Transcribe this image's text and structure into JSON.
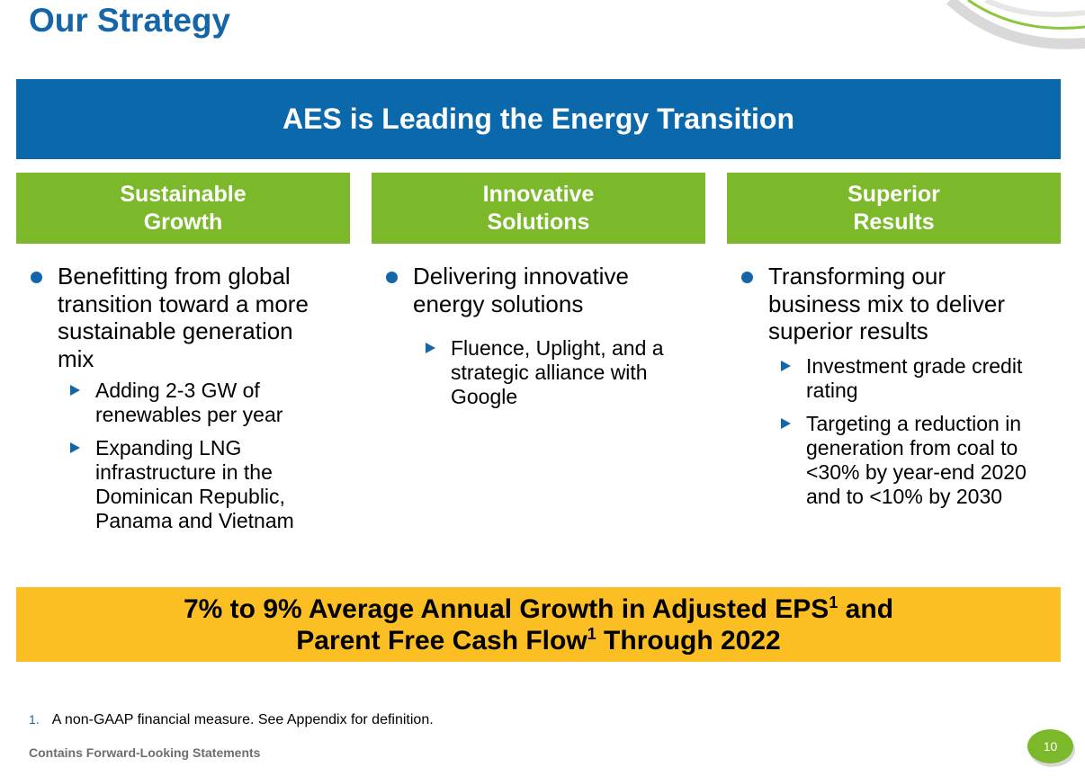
{
  "slide": {
    "title": "Our Strategy",
    "banner": "AES is Leading the Energy Transition",
    "columns": [
      {
        "header_line1": "Sustainable",
        "header_line2": "Growth",
        "bullet": [
          "Benefitting from global",
          "transition toward a more",
          "sustainable generation",
          "mix"
        ],
        "subs": [
          [
            "Adding 2-3 GW of",
            "renewables per year"
          ],
          [
            "Expanding LNG",
            "infrastructure in the",
            "Dominican Republic,",
            "Panama and Vietnam"
          ]
        ]
      },
      {
        "header_line1": "Innovative",
        "header_line2": "Solutions",
        "bullet": [
          "Delivering innovative",
          "energy solutions"
        ],
        "subs": [
          [
            "Fluence, Uplight, and a",
            "strategic alliance with",
            "Google"
          ]
        ]
      },
      {
        "header_line1": "Superior",
        "header_line2": "Results",
        "bullet": [
          "Transforming our",
          "business mix to deliver",
          "superior results"
        ],
        "subs": [
          [
            "Investment grade credit",
            "rating"
          ],
          [
            "Targeting a reduction in",
            "generation from coal to",
            "<30% by year-end 2020",
            "and to <10% by 2030"
          ]
        ]
      }
    ],
    "callout": {
      "line1_a": "7% to 9% Average Annual Growth in Adjusted EPS",
      "line1_sup": "1",
      "line1_b": " and",
      "line2_a": "Parent Free Cash Flow",
      "line2_sup": "1",
      "line2_b": " Through 2022"
    },
    "footnote_num": "1.",
    "footnote_text": "A non-GAAP financial measure.  See Appendix for definition.",
    "forward_looking": "Contains Forward-Looking Statements",
    "page_number": "10"
  },
  "colors": {
    "title_blue": "#1566a8",
    "banner_blue": "#0a68ab",
    "header_green": "#7bb92a",
    "callout_yellow": "#fbbf24"
  }
}
